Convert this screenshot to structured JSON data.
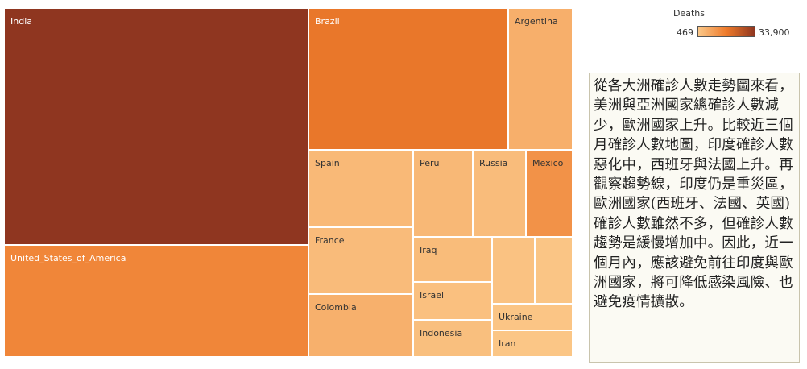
{
  "chart_data": {
    "type": "treemap",
    "measure": "Deaths",
    "color_range": [
      469,
      33900
    ],
    "color_scale": [
      "#fbc889",
      "#ee7a2b",
      "#8f3620"
    ],
    "items": [
      {
        "name": "India",
        "label": "India",
        "value": 33900
      },
      {
        "name": "United_States_of_America",
        "label": "United_States_of_America",
        "value": 14700
      },
      {
        "name": "Brazil",
        "label": "Brazil",
        "value": 18000
      },
      {
        "name": "Argentina",
        "label": "Argentina",
        "value": 5800
      },
      {
        "name": "Spain",
        "label": "Spain",
        "value": 3600
      },
      {
        "name": "France",
        "label": "France",
        "value": 3200
      },
      {
        "name": "Colombia",
        "label": "Colombia",
        "value": 5600
      },
      {
        "name": "Peru",
        "label": "Peru",
        "value": 3800
      },
      {
        "name": "Russia",
        "label": "Russia",
        "value": 3000
      },
      {
        "name": "Mexico",
        "label": "Mexico",
        "value": 12000
      },
      {
        "name": "Iraq",
        "label": "Iraq",
        "value": 3100
      },
      {
        "name": "Israel",
        "label": "Israel",
        "value": 2200
      },
      {
        "name": "Indonesia",
        "label": "Indonesia",
        "value": 2400
      },
      {
        "name": "Unlabeled A",
        "label": "",
        "value": 1800
      },
      {
        "name": "Unlabeled B",
        "label": "",
        "value": 1200
      },
      {
        "name": "Ukraine",
        "label": "Ukraine",
        "value": 1100
      },
      {
        "name": "Iran",
        "label": "Iran",
        "value": 1000
      }
    ]
  },
  "legend": {
    "title": "Deaths",
    "min_label": "469",
    "max_label": "33,900"
  },
  "note": {
    "text": "從各大洲確診人數走勢圖來看，美洲與亞洲國家總確診人數減少，歐洲國家上升。比較近三個月確診人數地圖，印度確診人數惡化中，西班牙與法國上升。再觀察趨勢線，印度仍是重災區，歐洲國家(西班牙、法國、英國)確診人數雖然不多，但確診人數趨勢是緩慢增加中。因此，近一個月內，應該避免前往印度與歐洲國家，將可降低感染風險、也避免疫情擴散。"
  }
}
